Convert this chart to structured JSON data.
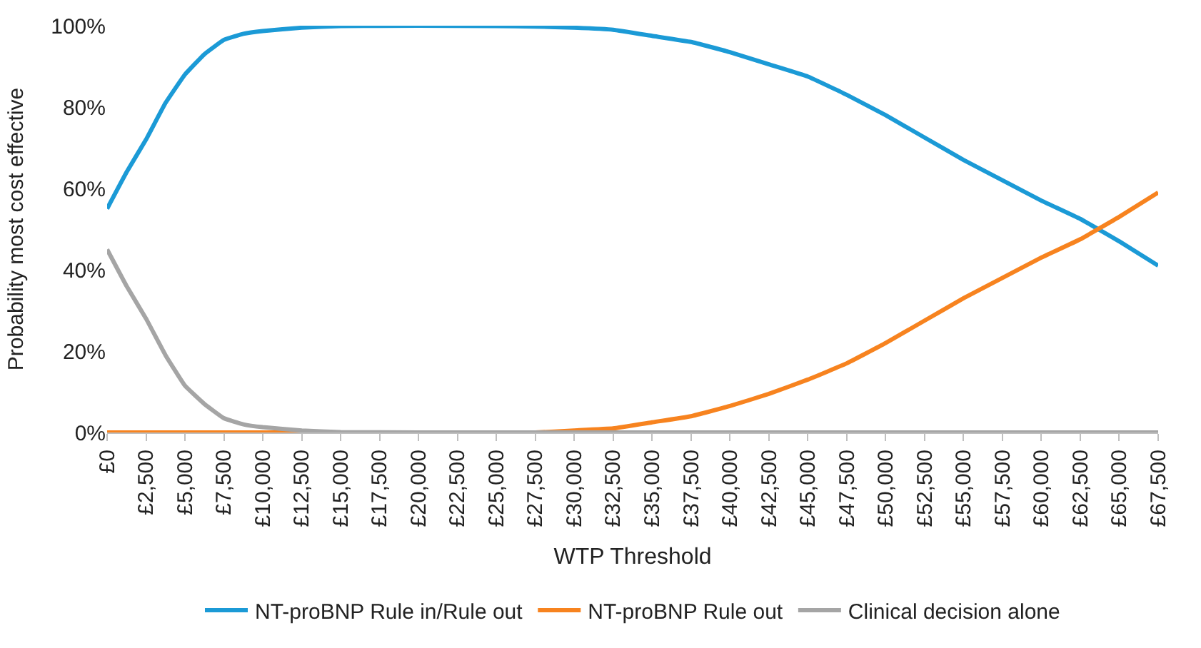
{
  "chart_data": {
    "type": "line",
    "xlabel": "WTP Threshold",
    "ylabel": "Probability most cost effective",
    "x": [
      0,
      1250,
      2500,
      3750,
      5000,
      6250,
      7500,
      8750,
      10000,
      12500,
      15000,
      20000,
      25000,
      27500,
      30000,
      32500,
      35000,
      37500,
      40000,
      42500,
      45000,
      47500,
      50000,
      52500,
      55000,
      57500,
      60000,
      62500,
      65000,
      67500
    ],
    "series": [
      {
        "name": "NT-proBNP Rule in/Rule out",
        "color": "#1b9ad6",
        "values": [
          55,
          64,
          72,
          81,
          88,
          93,
          96.5,
          98,
          98.7,
          99.5,
          99.9,
          100,
          99.9,
          99.8,
          99.5,
          99,
          97.5,
          96,
          93.5,
          90.5,
          87.5,
          83,
          78,
          72.5,
          67,
          62,
          57,
          52.5,
          47,
          41
        ]
      },
      {
        "name": "NT-proBNP Rule out",
        "color": "#f7831f",
        "values": [
          0,
          0,
          0,
          0,
          0,
          0,
          0,
          0,
          0,
          0,
          0,
          0,
          0,
          0,
          0.5,
          1,
          2.5,
          4,
          6.5,
          9.5,
          13,
          17,
          22,
          27.5,
          33,
          38,
          43,
          47.5,
          53,
          59
        ]
      },
      {
        "name": "Clinical decision alone",
        "color": "#a5a5a5",
        "values": [
          45,
          36,
          28,
          19,
          11.5,
          7,
          3.5,
          2,
          1.3,
          0.5,
          0.1,
          0,
          0,
          0,
          0,
          0,
          0,
          0,
          0,
          0,
          0,
          0,
          0,
          0,
          0,
          0,
          0,
          0,
          0,
          0
        ]
      }
    ],
    "xlim": [
      0,
      67500
    ],
    "xticks": [
      {
        "value": 0,
        "label": "£0"
      },
      {
        "value": 2500,
        "label": "£2,500"
      },
      {
        "value": 5000,
        "label": "£5,000"
      },
      {
        "value": 7500,
        "label": "£7,500"
      },
      {
        "value": 10000,
        "label": "£10,000"
      },
      {
        "value": 12500,
        "label": "£12,500"
      },
      {
        "value": 15000,
        "label": "£15,000"
      },
      {
        "value": 17500,
        "label": "£17,500"
      },
      {
        "value": 20000,
        "label": "£20,000"
      },
      {
        "value": 22500,
        "label": "£22,500"
      },
      {
        "value": 25000,
        "label": "£25,000"
      },
      {
        "value": 27500,
        "label": "£27,500"
      },
      {
        "value": 30000,
        "label": "£30,000"
      },
      {
        "value": 32500,
        "label": "£32,500"
      },
      {
        "value": 35000,
        "label": "£35,000"
      },
      {
        "value": 37500,
        "label": "£37,500"
      },
      {
        "value": 40000,
        "label": "£40,000"
      },
      {
        "value": 42500,
        "label": "£42,500"
      },
      {
        "value": 45000,
        "label": "£45,000"
      },
      {
        "value": 47500,
        "label": "£47,500"
      },
      {
        "value": 50000,
        "label": "£50,000"
      },
      {
        "value": 52500,
        "label": "£52,500"
      },
      {
        "value": 55000,
        "label": "£55,000"
      },
      {
        "value": 57500,
        "label": "£57,500"
      },
      {
        "value": 60000,
        "label": "£60,000"
      },
      {
        "value": 62500,
        "label": "£62,500"
      },
      {
        "value": 65000,
        "label": "£65,000"
      },
      {
        "value": 67500,
        "label": "£67,500"
      }
    ],
    "ylim": [
      0,
      100
    ],
    "yticks": [
      {
        "value": 0,
        "label": "0%"
      },
      {
        "value": 20,
        "label": "20%"
      },
      {
        "value": 40,
        "label": "40%"
      },
      {
        "value": 60,
        "label": "60%"
      },
      {
        "value": 80,
        "label": "80%"
      },
      {
        "value": 100,
        "label": "100%"
      }
    ],
    "legend": "bottom",
    "marker": "none",
    "line_style": "solid"
  }
}
